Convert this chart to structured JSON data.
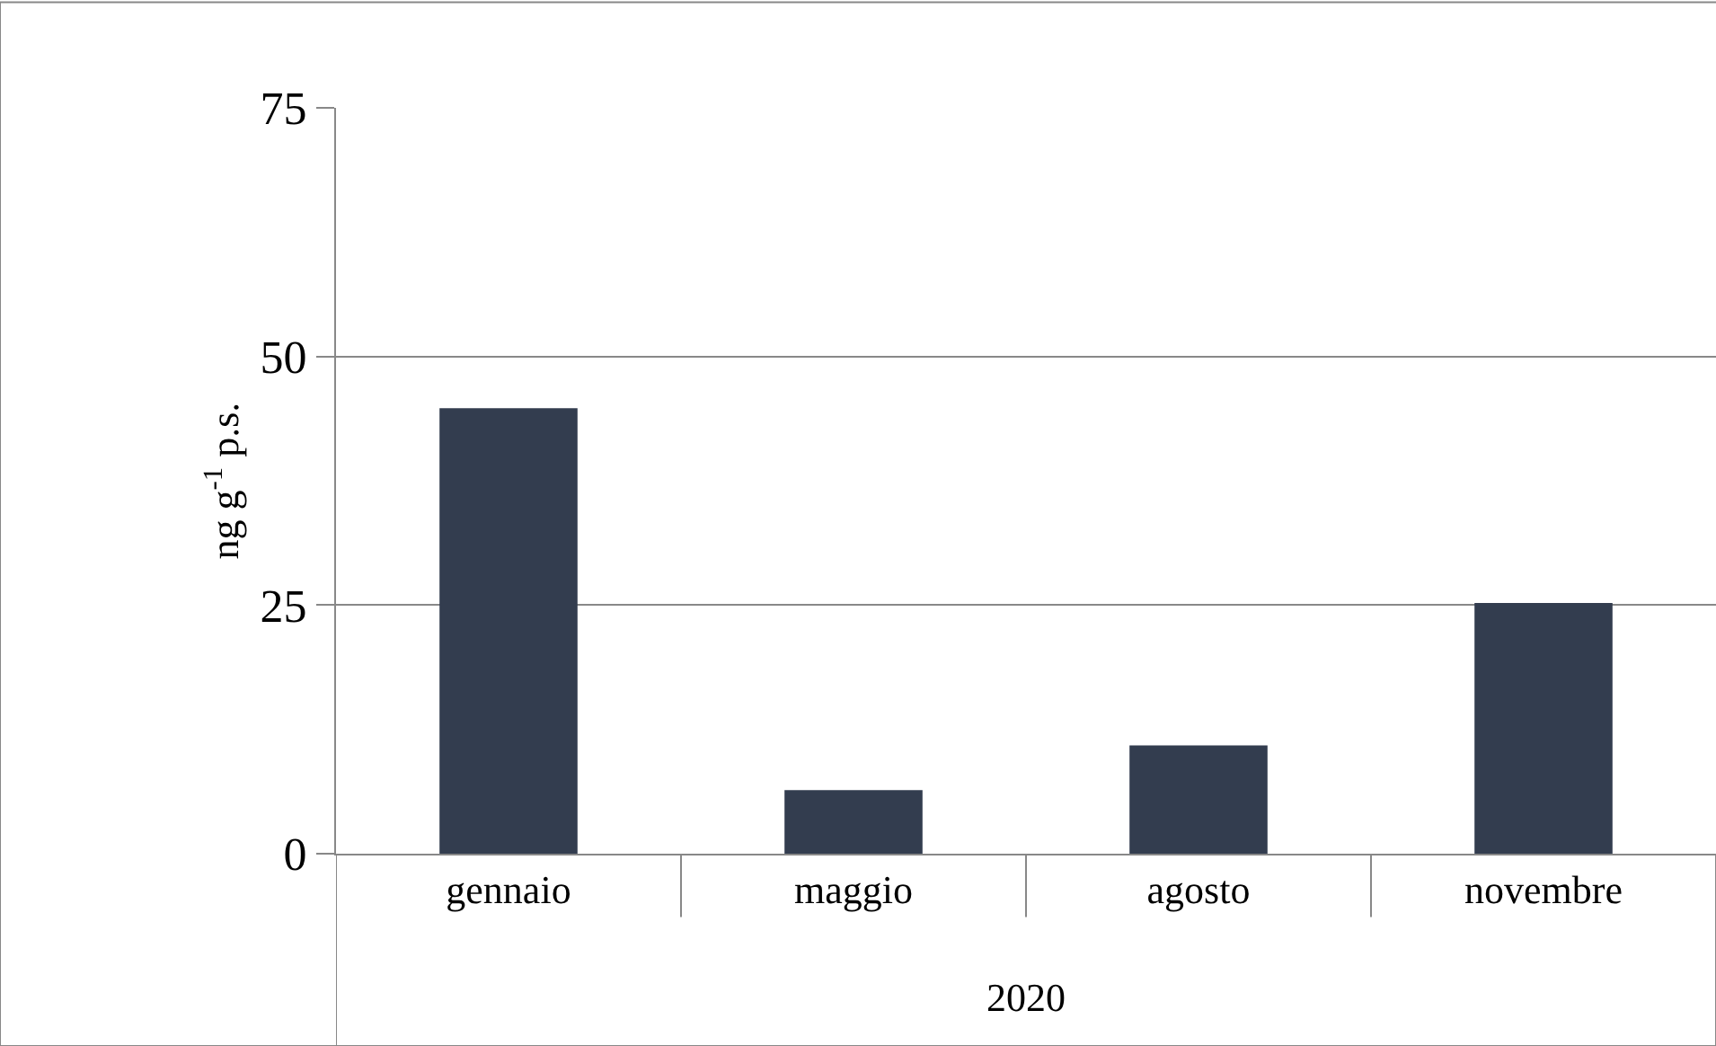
{
  "chart_data": {
    "type": "bar",
    "categories": [
      "gennaio",
      "maggio",
      "agosto",
      "novembre"
    ],
    "values": [
      44.8,
      6.4,
      10.9,
      25.2
    ],
    "color": "#333d4f",
    "ylabel": "ng g$^{-1}$ p.s.",
    "xlabel": "2020",
    "ylim": [
      0,
      75
    ],
    "yticks": [
      0,
      25,
      50,
      75
    ],
    "grid": "y"
  }
}
